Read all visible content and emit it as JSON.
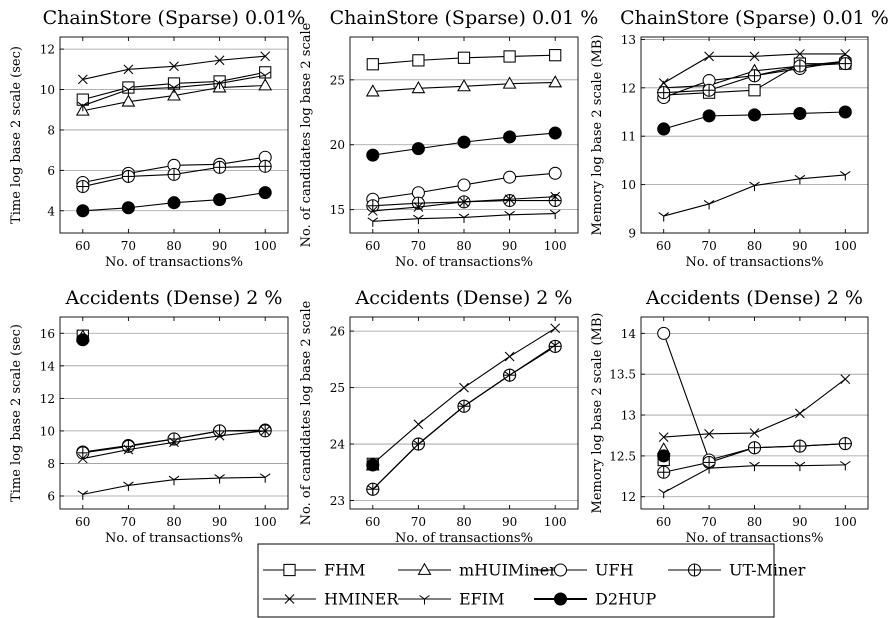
{
  "legend": {
    "entries": [
      {
        "name": "FHM",
        "marker": "square"
      },
      {
        "name": "mHUIMiner",
        "marker": "triangle"
      },
      {
        "name": "UFH",
        "marker": "circle"
      },
      {
        "name": "UT-Miner",
        "marker": "oplus"
      },
      {
        "name": "HMINER",
        "marker": "x"
      },
      {
        "name": "EFIM",
        "marker": "tri-y"
      },
      {
        "name": "D2HUP",
        "marker": "filled-circle"
      }
    ]
  },
  "chart_data": [
    {
      "type": "line",
      "title": "ChainStore (Sparse) 0.01%",
      "xlabel": "No. of transactions%",
      "ylabel": "Time log base 2 scale (sec)",
      "x": [
        60,
        70,
        80,
        90,
        100
      ],
      "xlim": [
        55,
        105
      ],
      "ylim": [
        2.9,
        12.6
      ],
      "yticks": [
        4,
        6,
        8,
        10,
        12
      ],
      "grid": "horizontal",
      "series": [
        {
          "name": "FHM",
          "values": [
            9.5,
            10.1,
            10.3,
            10.4,
            10.85
          ]
        },
        {
          "name": "mHUIMiner",
          "values": [
            8.95,
            9.4,
            9.7,
            10.1,
            10.2
          ]
        },
        {
          "name": "UFH",
          "values": [
            5.4,
            5.85,
            6.25,
            6.3,
            6.65
          ]
        },
        {
          "name": "UT-Miner",
          "values": [
            5.2,
            5.7,
            5.8,
            6.15,
            6.2
          ]
        },
        {
          "name": "HMINER",
          "values": [
            10.5,
            11.0,
            11.15,
            11.45,
            11.65
          ]
        },
        {
          "name": "EFIM",
          "values": [
            9.2,
            10.0,
            10.1,
            10.3,
            10.7
          ]
        },
        {
          "name": "D2HUP",
          "values": [
            4.0,
            4.15,
            4.4,
            4.55,
            4.9
          ]
        }
      ]
    },
    {
      "type": "line",
      "title": "ChainStore (Sparse) 0.01 %",
      "xlabel": "No. of transactions%",
      "ylabel": "No. of candidates log base 2 scale",
      "x": [
        60,
        70,
        80,
        90,
        100
      ],
      "xlim": [
        55,
        105
      ],
      "ylim": [
        13.2,
        28.3
      ],
      "yticks": [
        15,
        20,
        25
      ],
      "grid": "horizontal",
      "series": [
        {
          "name": "FHM",
          "values": [
            26.2,
            26.5,
            26.7,
            26.8,
            26.9
          ]
        },
        {
          "name": "mHUIMiner",
          "values": [
            24.1,
            24.35,
            24.5,
            24.7,
            24.8
          ]
        },
        {
          "name": "UFH",
          "values": [
            15.8,
            16.3,
            16.9,
            17.5,
            17.8
          ]
        },
        {
          "name": "UT-Miner",
          "values": [
            15.3,
            15.5,
            15.6,
            15.7,
            15.7
          ]
        },
        {
          "name": "HMINER",
          "values": [
            14.9,
            15.2,
            15.6,
            15.8,
            16.0
          ]
        },
        {
          "name": "EFIM",
          "values": [
            14.1,
            14.3,
            14.4,
            14.6,
            14.7
          ]
        },
        {
          "name": "D2HUP",
          "values": [
            19.2,
            19.7,
            20.2,
            20.6,
            20.9
          ]
        }
      ]
    },
    {
      "type": "line",
      "title": "ChainStore (Sparse) 0.01 %",
      "xlabel": "No. of transactions%",
      "ylabel": "Memory log base 2 scale (MB)",
      "x": [
        60,
        70,
        80,
        90,
        100
      ],
      "xlim": [
        55,
        105
      ],
      "ylim": [
        9.0,
        13.05
      ],
      "yticks": [
        9,
        10,
        11,
        12,
        13
      ],
      "grid": "horizontal",
      "series": [
        {
          "name": "FHM",
          "values": [
            11.85,
            11.9,
            11.95,
            12.5,
            12.5
          ]
        },
        {
          "name": "mHUIMiner",
          "values": [
            12.0,
            12.05,
            12.35,
            12.45,
            12.55
          ]
        },
        {
          "name": "UFH",
          "values": [
            11.8,
            12.15,
            12.25,
            12.4,
            12.55
          ]
        },
        {
          "name": "UT-Miner",
          "values": [
            11.9,
            11.95,
            12.25,
            12.45,
            12.5
          ]
        },
        {
          "name": "HMINER",
          "values": [
            12.1,
            12.65,
            12.65,
            12.7,
            12.7
          ]
        },
        {
          "name": "EFIM",
          "values": [
            9.35,
            9.6,
            9.98,
            10.12,
            10.2
          ]
        },
        {
          "name": "D2HUP",
          "values": [
            11.15,
            11.42,
            11.44,
            11.47,
            11.5
          ]
        }
      ]
    },
    {
      "type": "line",
      "title": "Accidents (Dense) 2 %",
      "xlabel": "No. of transactions%",
      "ylabel": "Time log base 2 scale (sec)",
      "x": [
        60,
        70,
        80,
        90,
        100
      ],
      "xlim": [
        55,
        105
      ],
      "ylim": [
        5.2,
        17.0
      ],
      "yticks": [
        6,
        8,
        10,
        12,
        14,
        16
      ],
      "grid": "horizontal",
      "series": [
        {
          "name": "FHM",
          "values": [
            15.85,
            null,
            null,
            null,
            null
          ]
        },
        {
          "name": "mHUIMiner",
          "values": [
            15.8,
            null,
            null,
            null,
            null
          ]
        },
        {
          "name": "UFH",
          "values": [
            8.7,
            9.1,
            9.5,
            10.0,
            10.05
          ]
        },
        {
          "name": "UT-Miner",
          "values": [
            8.65,
            9.05,
            9.5,
            10.0,
            10.0
          ]
        },
        {
          "name": "HMINER",
          "values": [
            8.3,
            8.85,
            9.3,
            9.7,
            10.0
          ]
        },
        {
          "name": "EFIM",
          "values": [
            6.1,
            6.65,
            7.0,
            7.1,
            7.15
          ]
        },
        {
          "name": "D2HUP",
          "values": [
            15.6,
            null,
            null,
            null,
            null
          ]
        }
      ]
    },
    {
      "type": "line",
      "title": "Accidents (Dense) 2 %",
      "xlabel": "No. of transactions%",
      "ylabel": "No. of candidates log base 2 scale",
      "x": [
        60,
        70,
        80,
        90,
        100
      ],
      "xlim": [
        55,
        105
      ],
      "ylim": [
        22.85,
        26.25
      ],
      "yticks": [
        23,
        24,
        25,
        26
      ],
      "grid": "horizontal",
      "series": [
        {
          "name": "FHM",
          "values": [
            23.65,
            null,
            null,
            null,
            null
          ]
        },
        {
          "name": "mHUIMiner",
          "values": [
            23.62,
            null,
            null,
            null,
            null
          ]
        },
        {
          "name": "UFH",
          "values": [
            23.2,
            24.0,
            24.67,
            25.22,
            25.73
          ]
        },
        {
          "name": "UT-Miner",
          "values": [
            23.2,
            24.0,
            24.67,
            25.22,
            25.73
          ]
        },
        {
          "name": "HMINER",
          "values": [
            23.65,
            24.35,
            25.0,
            25.55,
            26.05
          ]
        },
        {
          "name": "EFIM",
          "values": [
            23.2,
            24.0,
            24.67,
            25.22,
            25.75
          ]
        },
        {
          "name": "D2HUP",
          "values": [
            23.63,
            null,
            null,
            null,
            null
          ]
        }
      ]
    },
    {
      "type": "line",
      "title": "Accidents (Dense) 2 %",
      "xlabel": "No. of transactions%",
      "ylabel": "Memory log base 2 scale (MB)",
      "x": [
        60,
        70,
        80,
        90,
        100
      ],
      "xlim": [
        55,
        105
      ],
      "ylim": [
        11.85,
        14.2
      ],
      "yticks": [
        12,
        12.5,
        13,
        13.5,
        14
      ],
      "grid": "horizontal",
      "series": [
        {
          "name": "FHM",
          "values": [
            12.45,
            null,
            null,
            null,
            null
          ]
        },
        {
          "name": "mHUIMiner",
          "values": [
            12.58,
            null,
            null,
            null,
            null
          ]
        },
        {
          "name": "UFH",
          "values": [
            14.0,
            12.45,
            12.6,
            12.62,
            12.65
          ]
        },
        {
          "name": "UT-Miner",
          "values": [
            12.3,
            12.42,
            12.6,
            12.62,
            12.65
          ]
        },
        {
          "name": "HMINER",
          "values": [
            12.73,
            12.77,
            12.78,
            13.02,
            13.44
          ]
        },
        {
          "name": "EFIM",
          "values": [
            12.05,
            12.35,
            12.38,
            12.38,
            12.39
          ]
        },
        {
          "name": "D2HUP",
          "values": [
            12.5,
            null,
            null,
            null,
            null
          ]
        }
      ]
    }
  ]
}
